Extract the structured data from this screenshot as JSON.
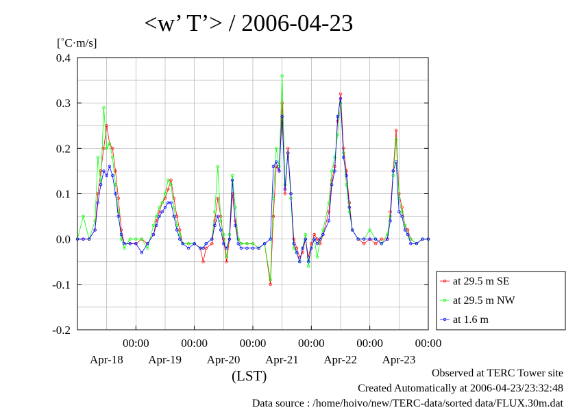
{
  "title": "<w’ T’> / 2006-04-23",
  "y_unit": "[˚C·m/s]",
  "x_unit": "(LST)",
  "footer": {
    "line1": "Observed at TERC Tower site",
    "line2": "Created Automatically at 2006-04-23/23:32:48",
    "line3": "Data source : /home/hoivo/new/TERC-data/sorted  data/FLUX.30m.dat"
  },
  "colors": {
    "se": "#ff0000",
    "nw": "#00ff00",
    "low": "#0000ff",
    "grid": "#b0b0b0"
  },
  "chart_data": {
    "type": "line",
    "title": "<w’ T’> / 2006-04-23",
    "ylabel": "[˚C·m/s]",
    "xlabel": "(LST)",
    "ylim": [
      -0.2,
      0.4
    ],
    "yticks": [
      -0.2,
      -0.1,
      0.0,
      0.1,
      0.2,
      0.3,
      0.4
    ],
    "xlim": [
      -1.0,
      5.0
    ],
    "xticks": [
      {
        "x": 0,
        "time": "00:00",
        "date": "Apr-18"
      },
      {
        "x": 1,
        "time": "00:00",
        "date": "Apr-19"
      },
      {
        "x": 2,
        "time": "00:00",
        "date": "Apr-20"
      },
      {
        "x": 3,
        "time": "00:00",
        "date": "Apr-21"
      },
      {
        "x": 4,
        "time": "00:00",
        "date": "Apr-22"
      },
      {
        "x": 5,
        "time": "00:00",
        "date": "Apr-23"
      }
    ],
    "grid": true,
    "legend_position": "right",
    "series": [
      {
        "name": "at 29.5 m SE",
        "color": "#ff0000",
        "points": [
          [
            -1.0,
            0.0
          ],
          [
            -0.9,
            0.0
          ],
          [
            -0.8,
            0.0
          ],
          [
            -0.7,
            0.02
          ],
          [
            -0.65,
            0.1
          ],
          [
            -0.6,
            0.15
          ],
          [
            -0.55,
            0.2
          ],
          [
            -0.5,
            0.25
          ],
          [
            -0.45,
            0.21
          ],
          [
            -0.4,
            0.2
          ],
          [
            -0.35,
            0.15
          ],
          [
            -0.3,
            0.09
          ],
          [
            -0.25,
            0.02
          ],
          [
            -0.2,
            -0.01
          ],
          [
            -0.1,
            -0.01
          ],
          [
            0.0,
            -0.01
          ],
          [
            0.1,
            0.0
          ],
          [
            0.2,
            -0.01
          ],
          [
            0.3,
            0.01
          ],
          [
            0.35,
            0.04
          ],
          [
            0.4,
            0.06
          ],
          [
            0.45,
            0.08
          ],
          [
            0.5,
            0.09
          ],
          [
            0.55,
            0.11
          ],
          [
            0.6,
            0.13
          ],
          [
            0.65,
            0.09
          ],
          [
            0.7,
            0.05
          ],
          [
            0.75,
            0.02
          ],
          [
            0.8,
            -0.01
          ],
          [
            0.9,
            -0.01
          ],
          [
            1.0,
            -0.01
          ],
          [
            1.1,
            -0.02
          ],
          [
            1.15,
            -0.05
          ],
          [
            1.2,
            -0.02
          ],
          [
            1.3,
            -0.01
          ],
          [
            1.35,
            0.04
          ],
          [
            1.4,
            0.09
          ],
          [
            1.45,
            0.05
          ],
          [
            1.5,
            0.0
          ],
          [
            1.55,
            -0.05
          ],
          [
            1.6,
            0.0
          ],
          [
            1.65,
            0.1
          ],
          [
            1.7,
            0.04
          ],
          [
            1.75,
            0.0
          ],
          [
            1.8,
            -0.01
          ],
          [
            1.9,
            -0.01
          ],
          [
            2.0,
            -0.01
          ],
          [
            2.1,
            -0.02
          ],
          [
            2.2,
            -0.01
          ],
          [
            2.3,
            -0.1
          ],
          [
            2.35,
            0.05
          ],
          [
            2.4,
            0.16
          ],
          [
            2.45,
            0.15
          ],
          [
            2.5,
            0.3
          ],
          [
            2.55,
            0.1
          ],
          [
            2.6,
            0.2
          ],
          [
            2.65,
            0.1
          ],
          [
            2.7,
            0.0
          ],
          [
            2.75,
            -0.02
          ],
          [
            2.8,
            -0.04
          ],
          [
            2.85,
            -0.03
          ],
          [
            2.9,
            0.0
          ],
          [
            2.95,
            -0.04
          ],
          [
            3.0,
            -0.01
          ],
          [
            3.05,
            0.01
          ],
          [
            3.1,
            0.0
          ],
          [
            3.15,
            -0.01
          ],
          [
            3.2,
            0.01
          ],
          [
            3.3,
            0.06
          ],
          [
            3.35,
            0.13
          ],
          [
            3.4,
            0.16
          ],
          [
            3.45,
            0.26
          ],
          [
            3.5,
            0.32
          ],
          [
            3.55,
            0.2
          ],
          [
            3.6,
            0.15
          ],
          [
            3.65,
            0.08
          ],
          [
            3.7,
            0.02
          ],
          [
            3.8,
            0.0
          ],
          [
            3.9,
            -0.01
          ],
          [
            4.0,
            0.0
          ],
          [
            4.1,
            -0.01
          ],
          [
            4.2,
            0.0
          ],
          [
            4.3,
            0.0
          ],
          [
            4.35,
            0.06
          ],
          [
            4.4,
            0.15
          ],
          [
            4.45,
            0.24
          ],
          [
            4.5,
            0.1
          ],
          [
            4.55,
            0.07
          ],
          [
            4.6,
            0.03
          ],
          [
            4.65,
            0.02
          ],
          [
            4.7,
            0.0
          ],
          [
            4.8,
            -0.01
          ],
          [
            4.9,
            0.0
          ],
          [
            5.0,
            0.0
          ]
        ]
      },
      {
        "name": "at 29.5 m NW",
        "color": "#00ff00",
        "points": [
          [
            -1.0,
            0.0
          ],
          [
            -0.9,
            0.05
          ],
          [
            -0.8,
            0.0
          ],
          [
            -0.7,
            0.04
          ],
          [
            -0.65,
            0.18
          ],
          [
            -0.6,
            0.12
          ],
          [
            -0.55,
            0.29
          ],
          [
            -0.5,
            0.2
          ],
          [
            -0.45,
            0.21
          ],
          [
            -0.4,
            0.18
          ],
          [
            -0.35,
            0.12
          ],
          [
            -0.3,
            0.06
          ],
          [
            -0.25,
            0.0
          ],
          [
            -0.2,
            -0.02
          ],
          [
            -0.1,
            0.0
          ],
          [
            0.0,
            0.0
          ],
          [
            0.1,
            0.0
          ],
          [
            0.2,
            -0.02
          ],
          [
            0.3,
            0.03
          ],
          [
            0.35,
            0.05
          ],
          [
            0.4,
            0.07
          ],
          [
            0.45,
            0.08
          ],
          [
            0.5,
            0.1
          ],
          [
            0.55,
            0.13
          ],
          [
            0.6,
            0.12
          ],
          [
            0.65,
            0.07
          ],
          [
            0.7,
            0.03
          ],
          [
            0.75,
            0.01
          ],
          [
            0.8,
            -0.01
          ],
          [
            0.9,
            -0.01
          ],
          [
            1.0,
            -0.01
          ],
          [
            1.1,
            -0.02
          ],
          [
            1.15,
            -0.02
          ],
          [
            1.2,
            -0.01
          ],
          [
            1.3,
            0.0
          ],
          [
            1.35,
            0.06
          ],
          [
            1.4,
            0.16
          ],
          [
            1.45,
            0.04
          ],
          [
            1.5,
            0.01
          ],
          [
            1.55,
            -0.04
          ],
          [
            1.6,
            0.01
          ],
          [
            1.65,
            0.14
          ],
          [
            1.7,
            0.07
          ],
          [
            1.75,
            0.0
          ],
          [
            1.8,
            -0.01
          ],
          [
            1.9,
            -0.01
          ],
          [
            2.0,
            -0.01
          ],
          [
            2.1,
            -0.02
          ],
          [
            2.2,
            -0.01
          ],
          [
            2.3,
            -0.09
          ],
          [
            2.35,
            0.09
          ],
          [
            2.4,
            0.2
          ],
          [
            2.45,
            0.16
          ],
          [
            2.5,
            0.36
          ],
          [
            2.55,
            0.12
          ],
          [
            2.6,
            0.19
          ],
          [
            2.65,
            0.09
          ],
          [
            2.7,
            -0.02
          ],
          [
            2.75,
            -0.03
          ],
          [
            2.8,
            -0.05
          ],
          [
            2.85,
            -0.02
          ],
          [
            2.9,
            0.01
          ],
          [
            2.95,
            -0.06
          ],
          [
            3.0,
            -0.02
          ],
          [
            3.05,
            0.0
          ],
          [
            3.1,
            -0.04
          ],
          [
            3.15,
            0.0
          ],
          [
            3.2,
            0.02
          ],
          [
            3.3,
            0.08
          ],
          [
            3.35,
            0.15
          ],
          [
            3.4,
            0.18
          ],
          [
            3.45,
            0.23
          ],
          [
            3.5,
            0.3
          ],
          [
            3.55,
            0.19
          ],
          [
            3.6,
            0.12
          ],
          [
            3.65,
            0.06
          ],
          [
            3.7,
            0.02
          ],
          [
            3.8,
            0.0
          ],
          [
            3.9,
            0.0
          ],
          [
            4.0,
            0.02
          ],
          [
            4.1,
            0.0
          ],
          [
            4.2,
            -0.01
          ],
          [
            4.3,
            0.01
          ],
          [
            4.35,
            0.05
          ],
          [
            4.4,
            0.14
          ],
          [
            4.45,
            0.22
          ],
          [
            4.5,
            0.09
          ],
          [
            4.55,
            0.06
          ],
          [
            4.6,
            0.03
          ],
          [
            4.65,
            0.01
          ],
          [
            4.7,
            0.0
          ],
          [
            4.8,
            -0.01
          ],
          [
            4.9,
            0.0
          ],
          [
            5.0,
            0.0
          ]
        ]
      },
      {
        "name": "at 1.6 m",
        "color": "#0000ff",
        "points": [
          [
            -1.0,
            0.0
          ],
          [
            -0.9,
            0.0
          ],
          [
            -0.8,
            0.0
          ],
          [
            -0.7,
            0.02
          ],
          [
            -0.65,
            0.08
          ],
          [
            -0.6,
            0.12
          ],
          [
            -0.55,
            0.15
          ],
          [
            -0.5,
            0.14
          ],
          [
            -0.45,
            0.16
          ],
          [
            -0.4,
            0.14
          ],
          [
            -0.35,
            0.1
          ],
          [
            -0.3,
            0.05
          ],
          [
            -0.25,
            0.01
          ],
          [
            -0.2,
            -0.01
          ],
          [
            -0.1,
            -0.01
          ],
          [
            0.0,
            -0.01
          ],
          [
            0.1,
            -0.03
          ],
          [
            0.2,
            -0.01
          ],
          [
            0.3,
            0.01
          ],
          [
            0.35,
            0.03
          ],
          [
            0.4,
            0.05
          ],
          [
            0.45,
            0.06
          ],
          [
            0.5,
            0.07
          ],
          [
            0.55,
            0.08
          ],
          [
            0.6,
            0.08
          ],
          [
            0.65,
            0.05
          ],
          [
            0.7,
            0.02
          ],
          [
            0.75,
            0.0
          ],
          [
            0.8,
            -0.01
          ],
          [
            0.9,
            -0.02
          ],
          [
            1.0,
            -0.01
          ],
          [
            1.1,
            -0.02
          ],
          [
            1.15,
            -0.02
          ],
          [
            1.2,
            -0.01
          ],
          [
            1.3,
            0.0
          ],
          [
            1.35,
            0.03
          ],
          [
            1.4,
            0.05
          ],
          [
            1.45,
            0.02
          ],
          [
            1.5,
            -0.01
          ],
          [
            1.55,
            -0.02
          ],
          [
            1.6,
            0.0
          ],
          [
            1.65,
            0.13
          ],
          [
            1.7,
            0.03
          ],
          [
            1.75,
            -0.01
          ],
          [
            1.8,
            -0.02
          ],
          [
            1.9,
            -0.02
          ],
          [
            2.0,
            -0.02
          ],
          [
            2.1,
            -0.02
          ],
          [
            2.2,
            -0.01
          ],
          [
            2.3,
            0.0
          ],
          [
            2.35,
            0.16
          ],
          [
            2.4,
            0.17
          ],
          [
            2.45,
            0.15
          ],
          [
            2.5,
            0.27
          ],
          [
            2.55,
            0.11
          ],
          [
            2.6,
            0.19
          ],
          [
            2.65,
            0.1
          ],
          [
            2.7,
            -0.01
          ],
          [
            2.75,
            -0.03
          ],
          [
            2.8,
            -0.05
          ],
          [
            2.85,
            -0.02
          ],
          [
            2.9,
            0.0
          ],
          [
            2.95,
            -0.05
          ],
          [
            3.0,
            -0.02
          ],
          [
            3.05,
            0.0
          ],
          [
            3.1,
            -0.01
          ],
          [
            3.15,
            0.0
          ],
          [
            3.2,
            0.01
          ],
          [
            3.3,
            0.04
          ],
          [
            3.35,
            0.12
          ],
          [
            3.4,
            0.15
          ],
          [
            3.45,
            0.27
          ],
          [
            3.5,
            0.31
          ],
          [
            3.55,
            0.18
          ],
          [
            3.6,
            0.14
          ],
          [
            3.65,
            0.07
          ],
          [
            3.7,
            0.02
          ],
          [
            3.8,
            0.0
          ],
          [
            3.9,
            0.0
          ],
          [
            4.0,
            0.0
          ],
          [
            4.1,
            0.0
          ],
          [
            4.2,
            -0.01
          ],
          [
            4.3,
            0.0
          ],
          [
            4.35,
            0.04
          ],
          [
            4.4,
            0.15
          ],
          [
            4.45,
            0.17
          ],
          [
            4.5,
            0.06
          ],
          [
            4.55,
            0.05
          ],
          [
            4.6,
            0.02
          ],
          [
            4.65,
            0.01
          ],
          [
            4.7,
            -0.01
          ],
          [
            4.8,
            -0.01
          ],
          [
            4.9,
            0.0
          ],
          [
            5.0,
            0.0
          ]
        ]
      }
    ]
  }
}
